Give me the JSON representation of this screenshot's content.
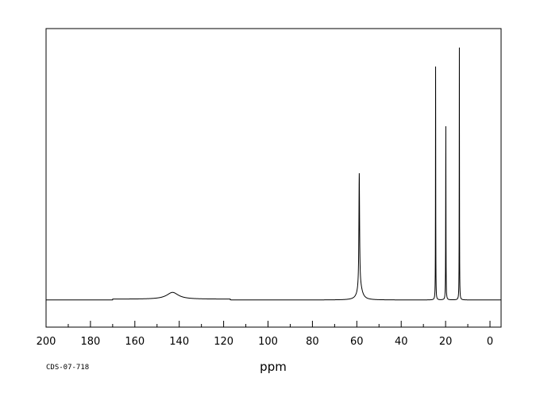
{
  "chart_data": {
    "type": "line",
    "title": "",
    "xlabel": "ppm",
    "ylabel": "",
    "xlim": [
      200,
      -5
    ],
    "ylim": [
      -0.1,
      1.0
    ],
    "x_reversed": true,
    "grid": false,
    "tick_values": [
      200,
      180,
      160,
      140,
      120,
      100,
      80,
      60,
      40,
      20,
      0
    ],
    "tick_labels": [
      "200",
      "180",
      "160",
      "140",
      "120",
      "100",
      "80",
      "60",
      "40",
      "20",
      "0"
    ],
    "minor_tick_step": 10,
    "baseline_pieces": [
      {
        "from": 200,
        "to": 170,
        "offset": 0.0
      },
      {
        "from": 170,
        "to": 117,
        "offset": 0.003
      },
      {
        "from": 117,
        "to": -5,
        "offset": 0.0
      }
    ],
    "peaks": [
      {
        "ppm": 143.0,
        "height": 0.025,
        "width": 3.2
      },
      {
        "ppm": 58.9,
        "height": 0.42,
        "width": 0.18
      },
      {
        "ppm": 58.6,
        "height": 0.05,
        "width": 1.2
      },
      {
        "ppm": 24.5,
        "height": 0.86,
        "width": 0.06
      },
      {
        "ppm": 19.9,
        "height": 0.64,
        "width": 0.07
      },
      {
        "ppm": 13.8,
        "height": 0.93,
        "width": 0.06
      }
    ],
    "line_color": "#000000"
  },
  "footer": {
    "code": "CDS-07-718"
  }
}
